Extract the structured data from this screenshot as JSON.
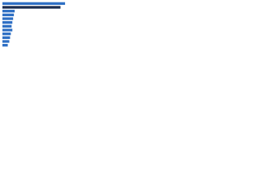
{
  "chart_data": {
    "type": "barh",
    "categories": [
      null,
      null,
      null,
      null,
      null,
      null,
      null,
      null,
      null,
      null,
      null,
      null
    ],
    "values": [
      82,
      76,
      16,
      15,
      14,
      13,
      12,
      13,
      11,
      10,
      9,
      7
    ],
    "colors": [
      "#2e6fc4",
      "#1b2c4e",
      "#2e6fc4",
      "#2e6fc4",
      "#2e6fc4",
      "#2e6fc4",
      "#2e6fc4",
      "#2e6fc4",
      "#2e6fc4",
      "#2e6fc4",
      "#2e6fc4",
      "#2e6fc4"
    ],
    "xlim": [
      0,
      100
    ]
  }
}
